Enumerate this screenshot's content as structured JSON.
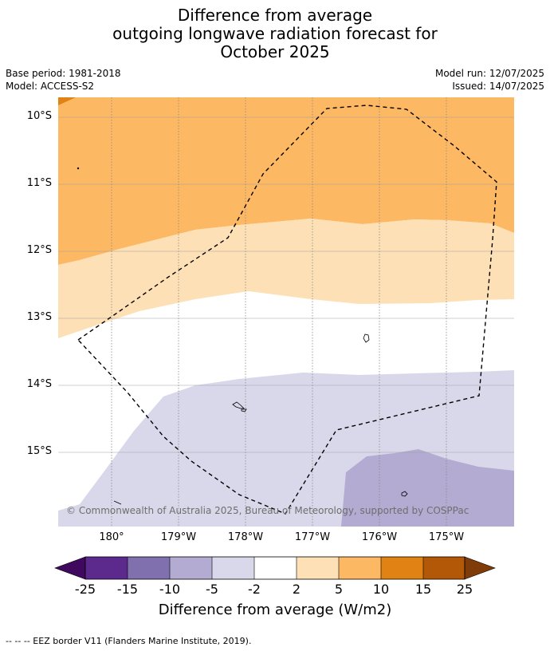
{
  "title_lines": [
    "Difference from average",
    "outgoing longwave radiation forecast for",
    "October 2025"
  ],
  "meta_left": [
    "Base period: 1981-2018",
    "Model: ACCESS-S2"
  ],
  "meta_right": [
    "Model run: 12/07/2025",
    "Issued: 14/07/2025"
  ],
  "lat_labels": [
    "10°S",
    "11°S",
    "12°S",
    "13°S",
    "14°S",
    "15°S"
  ],
  "lon_labels": [
    "180°",
    "179°W",
    "178°W",
    "177°W",
    "176°W",
    "175°W"
  ],
  "copyright": "© Commonwealth of Australia 2025, Bureau of Meteorology, supported by COSPPac",
  "colorbar": {
    "label": "Difference from average (W/m2)",
    "ticks": [
      "-25",
      "-15",
      "-10",
      "-5",
      "-2",
      "2",
      "5",
      "10",
      "15",
      "25"
    ],
    "colors": [
      "#3f0a5e",
      "#5b2a8c",
      "#8071ae",
      "#b3abd2",
      "#d8d8ea",
      "#ffffff",
      "#fee0b6",
      "#fdb863",
      "#e08214",
      "#b35806",
      "#7f3b08"
    ]
  },
  "footer": "-- -- -- EEZ border V11 (Flanders Marine Institute, 2019).",
  "palette": {
    "orange_10": "#fdb863",
    "light_orange_5": "#fee0b6",
    "neutral": "#ffffff",
    "light_purple_neg5": "#d8d8ea",
    "purple_neg10": "#b3abd2",
    "dark_orange_15": "#e08214"
  }
}
